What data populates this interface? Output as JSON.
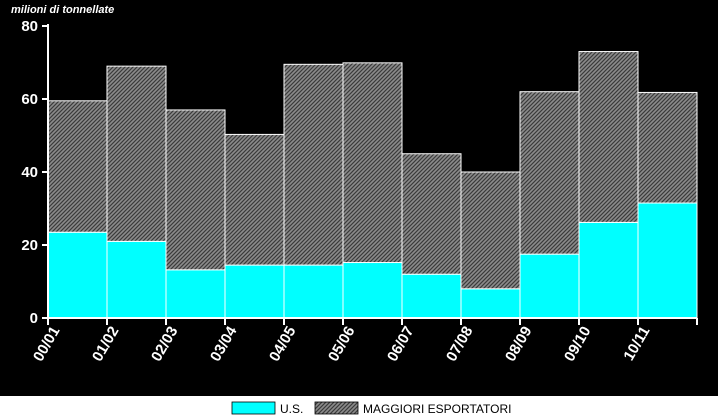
{
  "chart_data": {
    "type": "bar",
    "stacked": true,
    "title": "",
    "unit_label": "milioni di tonnellate",
    "xlabel": "",
    "ylabel": "",
    "ylim": [
      0,
      80
    ],
    "yticks": [
      0,
      20,
      40,
      60,
      80
    ],
    "categories": [
      "00/01",
      "01/02",
      "02/03",
      "03/04",
      "04/05",
      "05/06",
      "06/07",
      "07/08",
      "08/09",
      "09/10",
      "10/11"
    ],
    "series": [
      {
        "name": "U.S.",
        "color": "#00ffff",
        "values": [
          23.5,
          21,
          13.2,
          14.5,
          14.5,
          15.2,
          12,
          8,
          17.5,
          26.2,
          31.5
        ]
      },
      {
        "name": "MAGGIORI ESPORTATORI",
        "color": "#8c8c8c",
        "pattern": "diagonal-hatch",
        "values": [
          36,
          48,
          43.8,
          35.8,
          55,
          54.7,
          33,
          32,
          44.5,
          46.8,
          30.3
        ]
      }
    ],
    "grid": false,
    "legend_position": "bottom",
    "colors": {
      "outer_background": "#000000",
      "plot_background": "#000000",
      "page_background": "#ffffff",
      "axis": "#ffffff",
      "text": "#ffffff"
    }
  }
}
